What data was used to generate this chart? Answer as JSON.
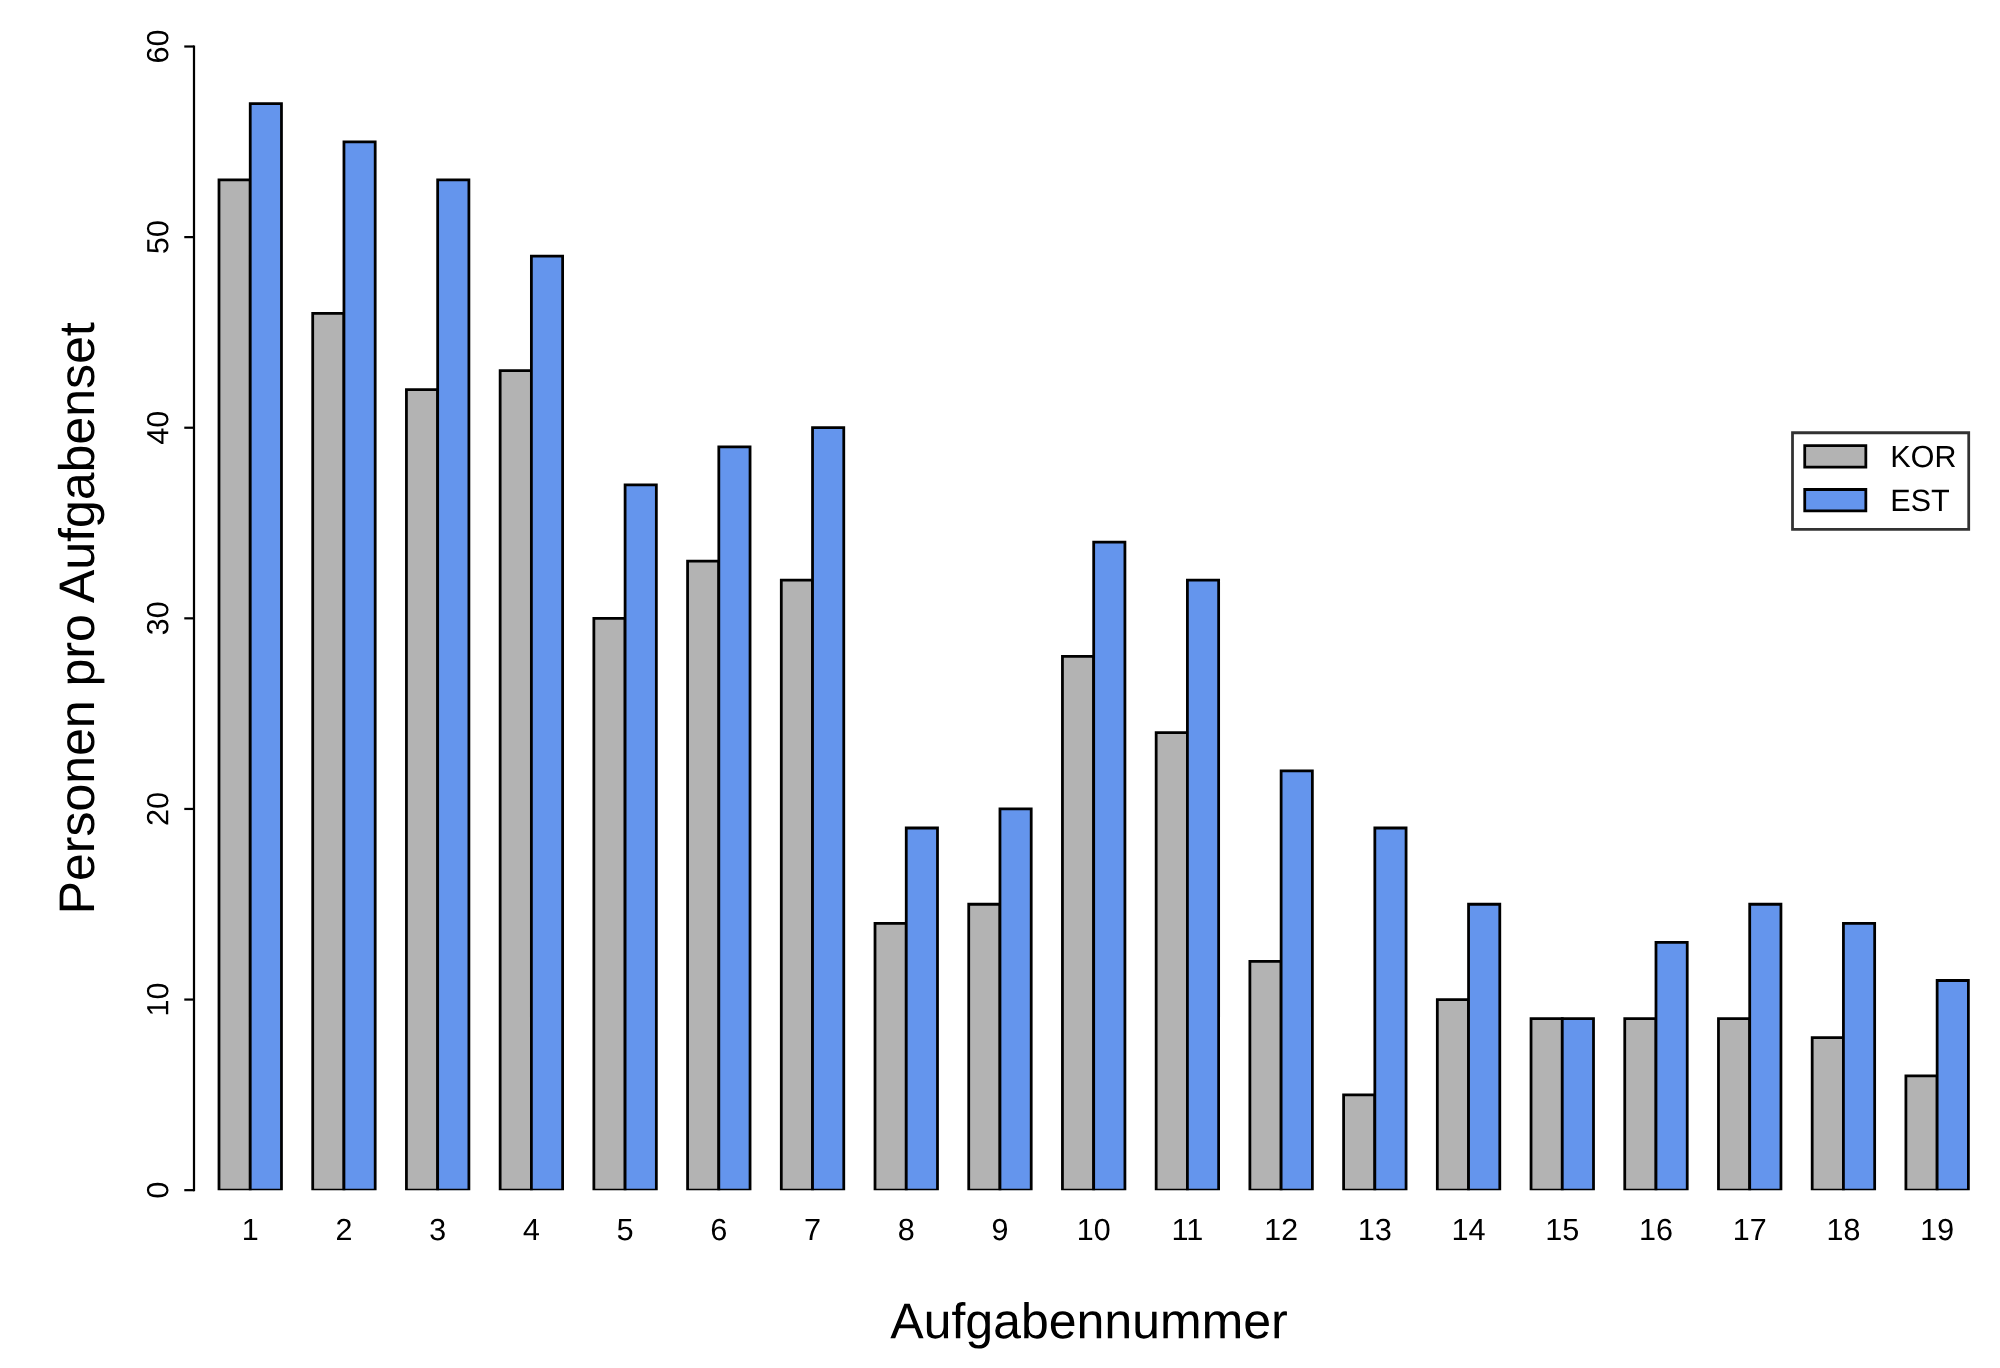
{
  "chart_data": {
    "type": "bar",
    "xlabel": "Aufgabennummer",
    "ylabel": "Personen pro Aufgabenset",
    "categories": [
      "1",
      "2",
      "3",
      "4",
      "5",
      "6",
      "7",
      "8",
      "9",
      "10",
      "11",
      "12",
      "13",
      "14",
      "15",
      "16",
      "17",
      "18",
      "19"
    ],
    "series": [
      {
        "name": "KOR",
        "color": "#b3b3b3",
        "values": [
          53,
          46,
          42,
          43,
          30,
          33,
          32,
          14,
          15,
          28,
          24,
          12,
          5,
          10,
          9,
          9,
          9,
          8,
          6
        ]
      },
      {
        "name": "EST",
        "color": "#6495ed",
        "values": [
          57,
          55,
          53,
          49,
          37,
          39,
          40,
          19,
          20,
          34,
          32,
          22,
          19,
          15,
          9,
          13,
          15,
          14,
          11
        ]
      }
    ],
    "ylim": [
      0,
      60
    ],
    "yticks": [
      0,
      10,
      20,
      30,
      40,
      50,
      60
    ],
    "grid": false,
    "legend": "right"
  }
}
